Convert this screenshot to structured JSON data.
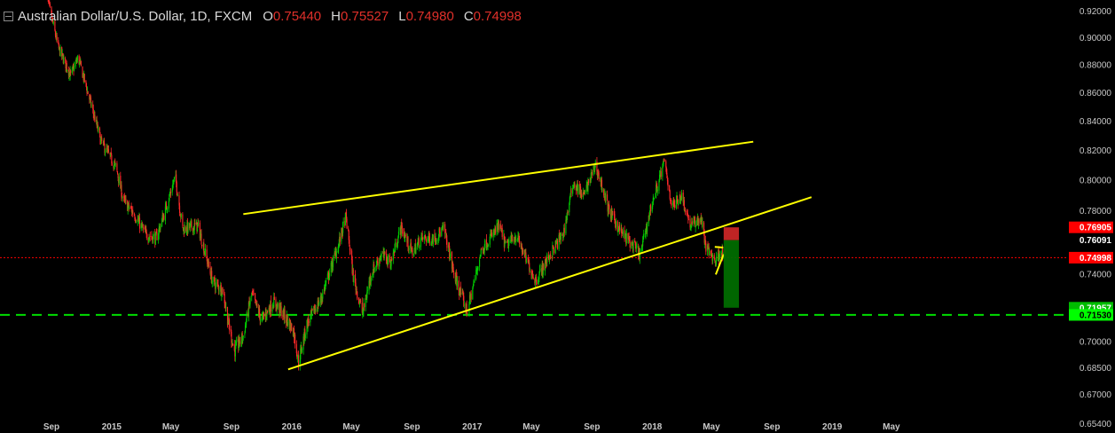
{
  "header": {
    "symbol": "Australian Dollar/U.S. Dollar, 1D, FXCM",
    "open_label": "O",
    "open": "0.75440",
    "high_label": "H",
    "high": "0.75527",
    "low_label": "L",
    "low": "0.74980",
    "close_label": "C",
    "close": "0.74998"
  },
  "chart_data": {
    "type": "candlestick",
    "title": "Australian Dollar/U.S. Dollar, 1D, FXCM",
    "ylim": [
      0.6405,
      0.926
    ],
    "y_ticks": [
      "0.92000",
      "0.90000",
      "0.88000",
      "0.86000",
      "0.84000",
      "0.82000",
      "0.80000",
      "0.78000",
      "0.74000",
      "0.70000",
      "0.68500",
      "0.67000",
      "0.65400"
    ],
    "x_ticks": [
      "Sep",
      "2015",
      "May",
      "Sep",
      "2016",
      "May",
      "Sep",
      "2017",
      "May",
      "Sep",
      "2018",
      "May",
      "Sep",
      "2019",
      "May"
    ],
    "price_path": [
      [
        "2014-08-20",
        0.935
      ],
      [
        "2014-09-15",
        0.892
      ],
      [
        "2014-10-10",
        0.872
      ],
      [
        "2014-10-25",
        0.885
      ],
      [
        "2014-11-15",
        0.858
      ],
      [
        "2014-12-10",
        0.826
      ],
      [
        "2015-01-10",
        0.808
      ],
      [
        "2015-01-25",
        0.786
      ],
      [
        "2015-02-15",
        0.778
      ],
      [
        "2015-03-10",
        0.765
      ],
      [
        "2015-04-01",
        0.762
      ],
      [
        "2015-04-20",
        0.78
      ],
      [
        "2015-05-10",
        0.802
      ],
      [
        "2015-05-25",
        0.768
      ],
      [
        "2015-06-25",
        0.77
      ],
      [
        "2015-07-25",
        0.735
      ],
      [
        "2015-08-15",
        0.73
      ],
      [
        "2015-08-24",
        0.713
      ],
      [
        "2015-09-07",
        0.694
      ],
      [
        "2015-09-25",
        0.703
      ],
      [
        "2015-10-12",
        0.728
      ],
      [
        "2015-11-01",
        0.712
      ],
      [
        "2015-11-25",
        0.723
      ],
      [
        "2015-12-10",
        0.718
      ],
      [
        "2016-01-05",
        0.706
      ],
      [
        "2016-01-15",
        0.688
      ],
      [
        "2016-02-01",
        0.71
      ],
      [
        "2016-03-01",
        0.725
      ],
      [
        "2016-04-05",
        0.758
      ],
      [
        "2016-04-20",
        0.776
      ],
      [
        "2016-05-05",
        0.738
      ],
      [
        "2016-05-24",
        0.716
      ],
      [
        "2016-06-10",
        0.74
      ],
      [
        "2016-07-01",
        0.752
      ],
      [
        "2016-07-20",
        0.747
      ],
      [
        "2016-08-10",
        0.769
      ],
      [
        "2016-09-01",
        0.753
      ],
      [
        "2016-09-20",
        0.762
      ],
      [
        "2016-10-15",
        0.762
      ],
      [
        "2016-11-05",
        0.768
      ],
      [
        "2016-11-25",
        0.74
      ],
      [
        "2016-12-22",
        0.717
      ],
      [
        "2017-01-20",
        0.755
      ],
      [
        "2017-02-25",
        0.77
      ],
      [
        "2017-03-10",
        0.757
      ],
      [
        "2017-04-01",
        0.764
      ],
      [
        "2017-04-20",
        0.749
      ],
      [
        "2017-05-10",
        0.736
      ],
      [
        "2017-06-10",
        0.753
      ],
      [
        "2017-07-05",
        0.765
      ],
      [
        "2017-07-25",
        0.798
      ],
      [
        "2017-08-15",
        0.789
      ],
      [
        "2017-09-08",
        0.81
      ],
      [
        "2017-10-05",
        0.78
      ],
      [
        "2017-10-30",
        0.766
      ],
      [
        "2017-12-08",
        0.752
      ],
      [
        "2017-12-28",
        0.78
      ],
      [
        "2018-01-26",
        0.812
      ],
      [
        "2018-02-10",
        0.782
      ],
      [
        "2018-03-01",
        0.79
      ],
      [
        "2018-03-20",
        0.77
      ],
      [
        "2018-04-10",
        0.775
      ],
      [
        "2018-04-20",
        0.756
      ],
      [
        "2018-05-10",
        0.748
      ],
      [
        "2018-05-20",
        0.755
      ],
      [
        "2018-05-29",
        0.75
      ]
    ],
    "trendlines": [
      {
        "from": [
          "2015-09-25",
          0.7775
        ],
        "to": [
          "2018-07-25",
          0.8255
        ],
        "color": "#ffff00"
      },
      {
        "from": [
          "2015-12-25",
          0.6838
        ],
        "to": [
          "2018-11-20",
          0.7885
        ],
        "color": "#ffff00"
      },
      {
        "from": [
          "2018-05-10",
          0.7396
        ],
        "to": [
          "2018-05-26",
          0.7521
        ],
        "color": "#ffff00"
      },
      {
        "from": [
          "2018-05-08",
          0.7567
        ],
        "to": [
          "2018-05-25",
          0.7563
        ],
        "color": "#ffff00"
      }
    ],
    "position": {
      "from": "2018-05-26",
      "to": "2018-06-26",
      "entry": 0.76091,
      "stop": 0.76905,
      "target": 0.71957
    },
    "horizontal_lines": [
      {
        "value": 0.7153,
        "color": "#00dd00",
        "style": "dashed"
      },
      {
        "value": 0.74998,
        "color": "#ff0000",
        "style": "dotted"
      }
    ],
    "price_labels": [
      {
        "value": 0.76905,
        "text": "0.76905",
        "bg": "#ff0000",
        "fg": "#ffffff"
      },
      {
        "value": 0.76091,
        "text": "0.76091",
        "bg": "#000000",
        "fg": "#ffffff"
      },
      {
        "value": 0.74998,
        "text": "0.74998",
        "bg": "#ff0000",
        "fg": "#ffffff"
      },
      {
        "value": 0.71957,
        "text": "0.71957",
        "bg": "#00bb00",
        "fg": "#ffffff"
      },
      {
        "value": 0.7153,
        "text": "0.71530",
        "bg": "#00ff00",
        "fg": "#000000"
      }
    ],
    "colors": {
      "up": "#00cc00",
      "down": "#ff2a2a",
      "trend": "#ffff00",
      "tp": "#006b00",
      "sl": "#ff3030"
    }
  }
}
